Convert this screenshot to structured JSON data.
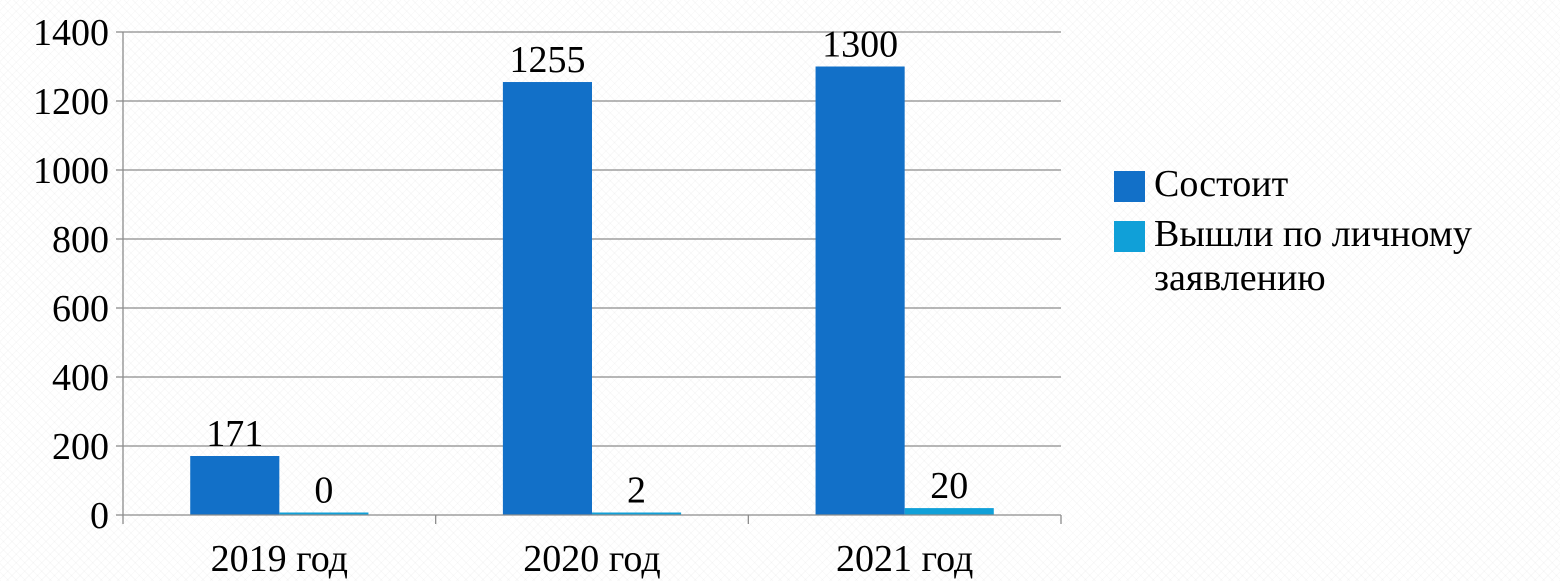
{
  "chart_data": {
    "type": "bar",
    "categories": [
      "2019 год",
      "2020 год",
      "2021 год"
    ],
    "series": [
      {
        "name": "Состоит",
        "values": [
          171,
          1255,
          1300
        ],
        "color": "#1270C8"
      },
      {
        "name": "Вышли по личному заявлению",
        "values": [
          0,
          2,
          20
        ],
        "color": "#10A0D8"
      }
    ],
    "data_labels": [
      [
        "171",
        "1255",
        "1300"
      ],
      [
        "0",
        "2",
        "20"
      ]
    ],
    "yticks": [
      "0",
      "200",
      "400",
      "600",
      "800",
      "1000",
      "1200",
      "1400"
    ],
    "ylim": [
      0,
      1400
    ],
    "grid": true,
    "legend_position": "right",
    "title": "",
    "xlabel": "",
    "ylabel": ""
  }
}
